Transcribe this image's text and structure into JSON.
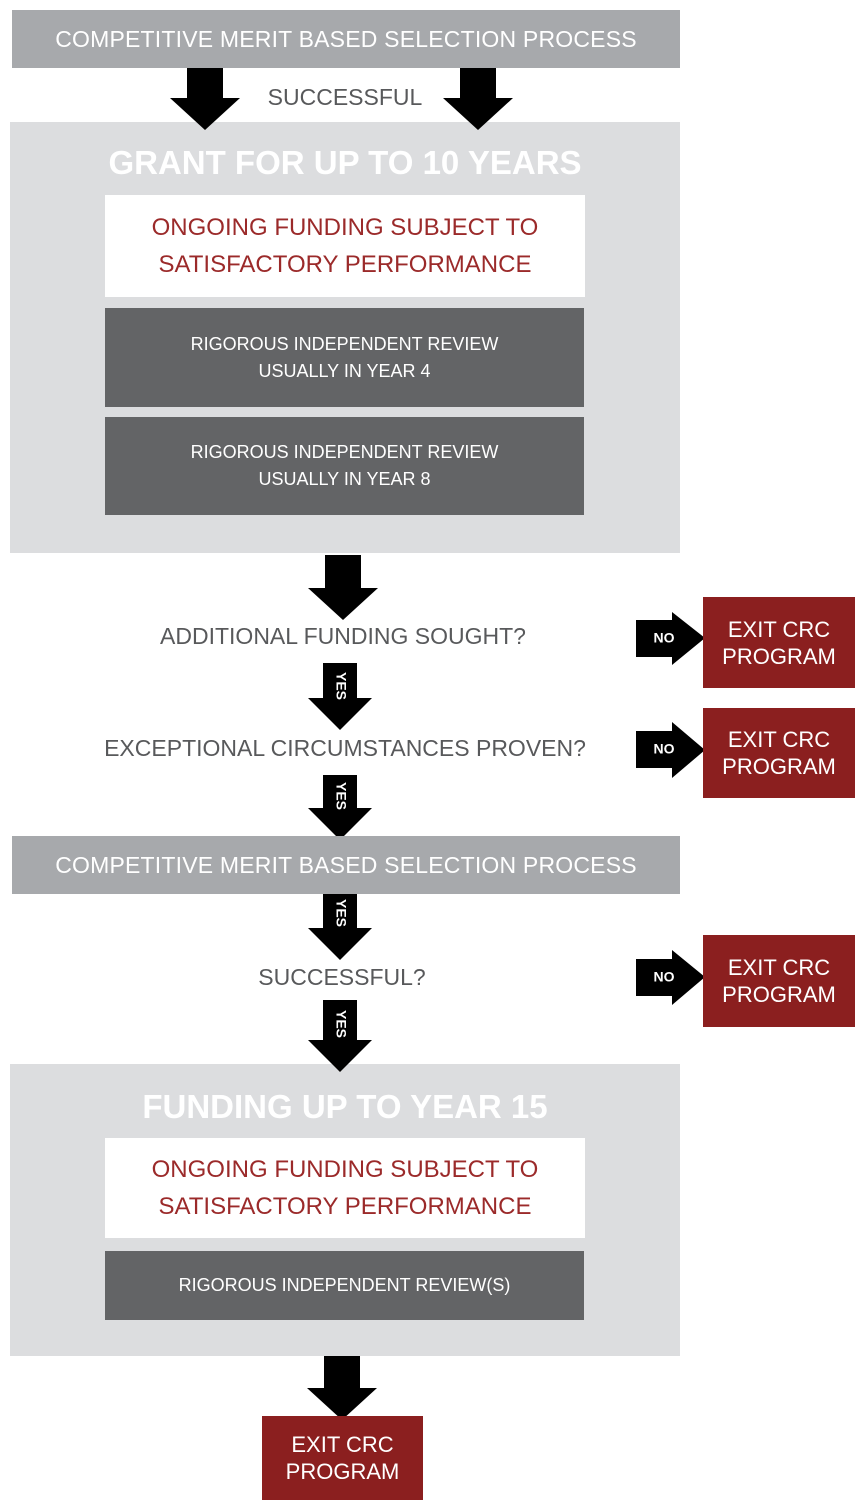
{
  "header": "COMPETITIVE MERIT BASED SELECTION PROCESS",
  "successful": "SUCCESSFUL",
  "grant": {
    "title": "GRANT FOR UP TO 10 YEARS",
    "funding": [
      "ONGOING FUNDING SUBJECT TO",
      "SATISFACTORY PERFORMANCE"
    ],
    "reviews": [
      [
        "RIGOROUS INDEPENDENT REVIEW",
        "USUALLY IN YEAR 4"
      ],
      [
        "RIGOROUS INDEPENDENT REVIEW",
        "USUALLY IN YEAR 8"
      ]
    ]
  },
  "questions": [
    "ADDITIONAL FUNDING SOUGHT?",
    "EXCEPTIONAL CIRCUMSTANCES PROVEN?"
  ],
  "selection": "COMPETITIVE MERIT BASED SELECTION PROCESS",
  "successful_question": "SUCCESSFUL?",
  "yes_labels": [
    "YES",
    "YES",
    "YES",
    "YES"
  ],
  "no_labels": [
    "NO",
    "NO",
    "NO"
  ],
  "exits": [
    [
      "EXIT CRC",
      "PROGRAM"
    ],
    [
      "EXIT CRC",
      "PROGRAM"
    ],
    [
      "EXIT CRC",
      "PROGRAM"
    ],
    [
      "EXIT CRC",
      "PROGRAM"
    ]
  ],
  "extension": {
    "title": "FUNDING UP TO YEAR 15",
    "funding": [
      "ONGOING FUNDING SUBJECT TO",
      "SATISFACTORY PERFORMANCE"
    ],
    "review": "RIGOROUS INDEPENDENT REVIEW(S)"
  }
}
